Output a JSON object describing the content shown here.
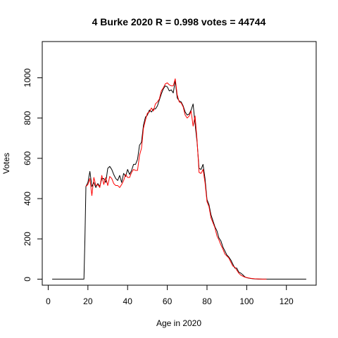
{
  "chart_data": {
    "type": "line",
    "title": "4 Burke 2020 R = 0.998 votes = 44744",
    "xlabel": "Age in 2020",
    "ylabel": "Votes",
    "xlim": [
      -3,
      135
    ],
    "ylim": [
      -30,
      1180
    ],
    "xticks": [
      0,
      20,
      40,
      60,
      80,
      100,
      120
    ],
    "yticks": [
      0,
      200,
      400,
      600,
      800,
      1000
    ],
    "grid": false,
    "series": [
      {
        "color": "#000000",
        "x": [
          2,
          18,
          18.5,
          19,
          20,
          21,
          22,
          23,
          24,
          25,
          26,
          27,
          28,
          29,
          30,
          31,
          32,
          33,
          34,
          35,
          36,
          37,
          38,
          39,
          40,
          41,
          42,
          43,
          44,
          45,
          46,
          47,
          48,
          49,
          50,
          51,
          52,
          53,
          54,
          55,
          56,
          57,
          58,
          59,
          60,
          61,
          62,
          63,
          64,
          65,
          66,
          67,
          68,
          69,
          70,
          71,
          72,
          73,
          74,
          75,
          76,
          77,
          78,
          79,
          80,
          81,
          82,
          83,
          84,
          85,
          86,
          87,
          88,
          89,
          90,
          91,
          92,
          93,
          94,
          95,
          96,
          97,
          98,
          99,
          100,
          102,
          104,
          106,
          108,
          110,
          115,
          120,
          125,
          130
        ],
        "y": [
          0,
          0,
          200,
          460,
          480,
          535,
          460,
          480,
          455,
          475,
          460,
          500,
          500,
          480,
          550,
          560,
          545,
          520,
          500,
          490,
          515,
          480,
          525,
          510,
          545,
          520,
          540,
          570,
          570,
          595,
          665,
          680,
          765,
          805,
          815,
          840,
          830,
          845,
          845,
          860,
          890,
          920,
          945,
          960,
          955,
          935,
          940,
          925,
          985,
          900,
          885,
          880,
          860,
          830,
          815,
          820,
          840,
          870,
          770,
          680,
          550,
          545,
          570,
          500,
          395,
          370,
          320,
          290,
          260,
          240,
          205,
          190,
          160,
          140,
          120,
          110,
          95,
          75,
          55,
          55,
          35,
          30,
          22,
          12,
          7,
          3,
          1,
          0,
          0,
          0,
          0,
          0,
          0,
          0
        ]
      },
      {
        "color": "#ff0000",
        "x": [
          19,
          20,
          21,
          22,
          23,
          24,
          25,
          26,
          27,
          28,
          29,
          30,
          31,
          32,
          33,
          34,
          35,
          36,
          37,
          38,
          39,
          40,
          41,
          42,
          43,
          44,
          45,
          46,
          47,
          48,
          49,
          50,
          51,
          52,
          53,
          54,
          55,
          56,
          57,
          58,
          59,
          60,
          61,
          62,
          63,
          64,
          65,
          66,
          67,
          68,
          69,
          70,
          71,
          72,
          73,
          74,
          75,
          76,
          77,
          78,
          79,
          80,
          81,
          82,
          83,
          84,
          85,
          86,
          87,
          88,
          89,
          90,
          91,
          92,
          93,
          94,
          95,
          96,
          97,
          98,
          99,
          100,
          102,
          104,
          106,
          108,
          110
        ],
        "y": [
          460,
          470,
          500,
          415,
          505,
          465,
          470,
          455,
          515,
          470,
          505,
          465,
          510,
          500,
          475,
          465,
          465,
          455,
          470,
          490,
          520,
          505,
          505,
          530,
          545,
          540,
          540,
          615,
          650,
          750,
          790,
          825,
          830,
          850,
          835,
          870,
          880,
          895,
          935,
          950,
          970,
          975,
          965,
          960,
          960,
          995,
          915,
          880,
          875,
          855,
          815,
          800,
          810,
          835,
          760,
          810,
          690,
          530,
          525,
          545,
          480,
          385,
          360,
          305,
          280,
          255,
          215,
          195,
          170,
          150,
          125,
          115,
          105,
          85,
          65,
          60,
          45,
          30,
          20,
          15,
          10,
          8,
          4,
          2,
          1,
          0,
          0
        ]
      }
    ]
  }
}
